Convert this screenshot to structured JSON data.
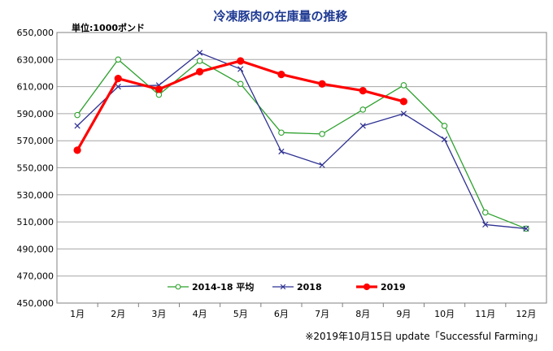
{
  "chart_data": {
    "type": "line",
    "title": "冷凍豚肉の在庫量の推移",
    "unit_label": "単位:1000ポンド",
    "footnote": "※2019年10月15日 update「Successful Farming」",
    "categories": [
      "1月",
      "2月",
      "3月",
      "4月",
      "5月",
      "6月",
      "7月",
      "8月",
      "9月",
      "10月",
      "11月",
      "12月"
    ],
    "ylim": [
      450000,
      650000
    ],
    "yticks": [
      450000,
      470000,
      490000,
      510000,
      530000,
      550000,
      570000,
      590000,
      610000,
      630000,
      650000
    ],
    "ytick_labels": [
      "450,000",
      "470,000",
      "490,000",
      "510,000",
      "530,000",
      "550,000",
      "570,000",
      "590,000",
      "610,000",
      "630,000",
      "650,000"
    ],
    "grid": true,
    "legend_position": "bottom-inside",
    "series": [
      {
        "name": "2014-18 平均",
        "color": "#2ca02c",
        "marker": "circle",
        "width": 1.3,
        "values": [
          589000,
          630000,
          604000,
          629000,
          612000,
          576000,
          575000,
          593000,
          611000,
          581000,
          517000,
          505000
        ]
      },
      {
        "name": "2018",
        "color": "#2e3192",
        "marker": "x",
        "width": 1.3,
        "values": [
          581000,
          610000,
          611000,
          635000,
          623000,
          562000,
          552000,
          581000,
          590000,
          571000,
          508000,
          505000
        ]
      },
      {
        "name": "2019",
        "color": "#ff0000",
        "marker": "dot",
        "width": 3.2,
        "values": [
          563000,
          616000,
          608000,
          621000,
          629000,
          619000,
          612000,
          607000,
          599000,
          null,
          null,
          null
        ]
      }
    ]
  }
}
